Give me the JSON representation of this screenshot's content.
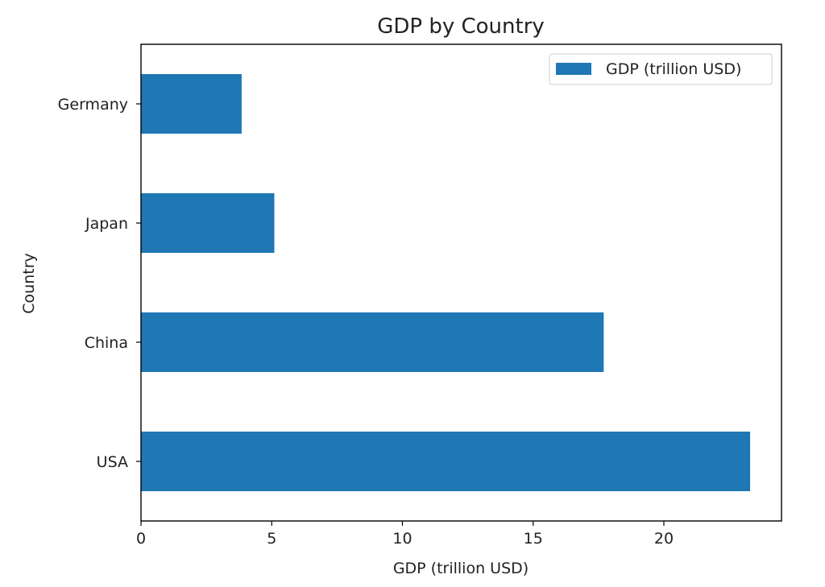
{
  "chart_data": {
    "type": "bar",
    "orientation": "horizontal",
    "title": "GDP by Country",
    "xlabel": "GDP (trillion USD)",
    "ylabel": "Country",
    "categories": [
      "USA",
      "China",
      "Japan",
      "Germany"
    ],
    "series": [
      {
        "name": "GDP (trillion USD)",
        "values": [
          23.3,
          17.7,
          5.1,
          3.85
        ],
        "color": "#1f77b4"
      }
    ],
    "xlim": [
      0,
      24.5
    ],
    "xticks": [
      0,
      5,
      10,
      15,
      20
    ],
    "xtick_labels": [
      "0",
      "5",
      "10",
      "15",
      "20"
    ],
    "grid": false,
    "legend_position": "top-right"
  }
}
